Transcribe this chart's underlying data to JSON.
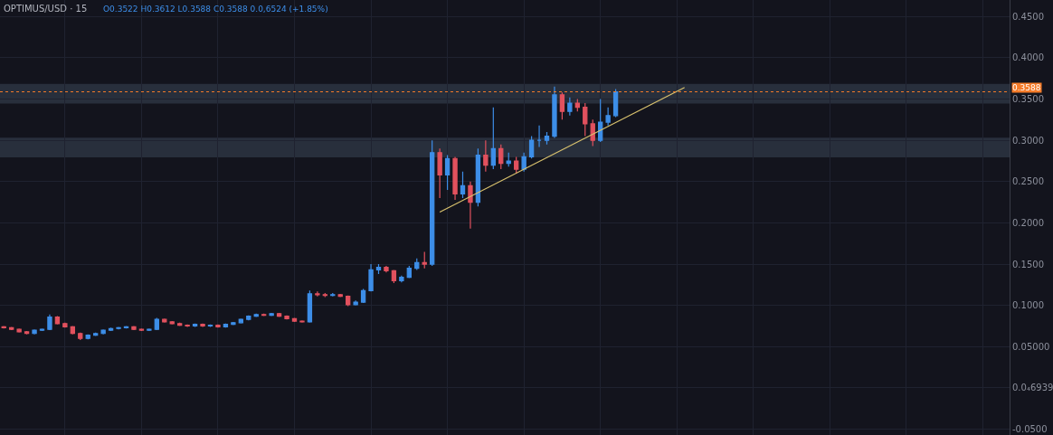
{
  "chart_data": {
    "type": "candlestick",
    "title": "OPTIMUS/USD · 15",
    "annotations": [
      "O0.3522 H0.3612 L0.3588 C0.3588 0.0,6524 (+1.85%)"
    ],
    "categories": [
      null,
      null,
      null,
      null,
      null,
      null,
      null,
      null,
      null,
      null,
      null,
      null,
      null,
      null,
      null,
      null,
      null,
      null,
      null,
      null,
      null,
      null,
      null,
      null,
      null,
      null,
      null,
      null,
      null,
      null,
      null,
      null,
      null,
      null,
      null,
      null,
      null,
      null,
      null,
      null,
      null,
      null,
      null,
      null,
      null,
      null,
      null,
      null,
      null,
      null,
      null,
      null,
      null,
      null,
      null,
      null,
      null,
      null,
      null,
      null,
      null,
      null,
      null,
      null,
      null,
      null,
      null,
      null,
      null,
      null,
      null,
      null,
      null,
      null,
      null,
      null,
      null,
      null,
      null,
      null,
      null,
      null,
      null,
      null,
      null,
      null,
      null,
      null,
      null,
      null,
      null,
      null,
      null,
      null,
      null,
      null,
      null,
      null,
      null,
      null,
      null,
      null,
      null,
      null,
      null,
      null,
      null,
      null,
      null,
      null,
      null,
      null,
      null,
      null,
      null,
      null,
      null,
      null,
      null,
      null,
      null,
      null,
      null,
      null,
      null,
      null,
      null,
      null,
      null,
      null,
      null,
      null
    ],
    "ohlc": [
      [
        0.074,
        0.075,
        0.072,
        0.073
      ],
      [
        0.073,
        0.074,
        0.07,
        0.071
      ],
      [
        0.071,
        0.072,
        0.067,
        0.068
      ],
      [
        0.068,
        0.069,
        0.065,
        0.066
      ],
      [
        0.066,
        0.071,
        0.065,
        0.07
      ],
      [
        0.07,
        0.072,
        0.069,
        0.071
      ],
      [
        0.071,
        0.089,
        0.07,
        0.086
      ],
      [
        0.086,
        0.087,
        0.077,
        0.078
      ],
      [
        0.078,
        0.079,
        0.073,
        0.074
      ],
      [
        0.074,
        0.075,
        0.065,
        0.066
      ],
      [
        0.066,
        0.067,
        0.058,
        0.06
      ],
      [
        0.06,
        0.065,
        0.059,
        0.064
      ],
      [
        0.064,
        0.067,
        0.063,
        0.066
      ],
      [
        0.066,
        0.071,
        0.065,
        0.07
      ],
      [
        0.07,
        0.073,
        0.069,
        0.072
      ],
      [
        0.072,
        0.074,
        0.071,
        0.073
      ],
      [
        0.073,
        0.075,
        0.072,
        0.074
      ],
      [
        0.074,
        0.075,
        0.07,
        0.071
      ],
      [
        0.071,
        0.072,
        0.069,
        0.07
      ],
      [
        0.07,
        0.072,
        0.069,
        0.071
      ],
      [
        0.071,
        0.085,
        0.07,
        0.083
      ],
      [
        0.083,
        0.084,
        0.079,
        0.08
      ],
      [
        0.08,
        0.081,
        0.077,
        0.078
      ],
      [
        0.078,
        0.079,
        0.075,
        0.076
      ],
      [
        0.076,
        0.077,
        0.074,
        0.075
      ],
      [
        0.075,
        0.078,
        0.074,
        0.077
      ],
      [
        0.077,
        0.078,
        0.074,
        0.075
      ],
      [
        0.075,
        0.077,
        0.074,
        0.076
      ],
      [
        0.076,
        0.077,
        0.073,
        0.074
      ],
      [
        0.074,
        0.078,
        0.073,
        0.077
      ],
      [
        0.077,
        0.08,
        0.076,
        0.079
      ],
      [
        0.079,
        0.084,
        0.078,
        0.083
      ],
      [
        0.083,
        0.088,
        0.082,
        0.087
      ],
      [
        0.087,
        0.09,
        0.086,
        0.089
      ],
      [
        0.089,
        0.09,
        0.087,
        0.088
      ],
      [
        0.088,
        0.091,
        0.087,
        0.09
      ],
      [
        0.09,
        0.091,
        0.086,
        0.087
      ],
      [
        0.087,
        0.088,
        0.083,
        0.084
      ],
      [
        0.084,
        0.085,
        0.08,
        0.081
      ],
      [
        0.081,
        0.082,
        0.079,
        0.08
      ],
      [
        0.08,
        0.118,
        0.079,
        0.114
      ],
      [
        0.114,
        0.117,
        0.111,
        0.113
      ],
      [
        0.113,
        0.115,
        0.11,
        0.112
      ],
      [
        0.112,
        0.115,
        0.111,
        0.113
      ],
      [
        0.113,
        0.114,
        0.11,
        0.111
      ],
      [
        0.111,
        0.112,
        0.099,
        0.101
      ],
      [
        0.101,
        0.106,
        0.1,
        0.104
      ],
      [
        0.104,
        0.12,
        0.103,
        0.118
      ],
      [
        0.118,
        0.15,
        0.117,
        0.143
      ],
      [
        0.143,
        0.15,
        0.138,
        0.146
      ],
      [
        0.146,
        0.148,
        0.14,
        0.142
      ],
      [
        0.142,
        0.143,
        0.127,
        0.13
      ],
      [
        0.13,
        0.136,
        0.128,
        0.134
      ],
      [
        0.134,
        0.148,
        0.133,
        0.145
      ],
      [
        0.145,
        0.157,
        0.143,
        0.152
      ],
      [
        0.152,
        0.165,
        0.145,
        0.15
      ],
      [
        0.15,
        0.3,
        0.148,
        0.285
      ],
      [
        0.285,
        0.29,
        0.23,
        0.258
      ],
      [
        0.258,
        0.282,
        0.24,
        0.278
      ],
      [
        0.278,
        0.28,
        0.228,
        0.235
      ],
      [
        0.235,
        0.262,
        0.23,
        0.245
      ],
      [
        0.245,
        0.25,
        0.193,
        0.225
      ],
      [
        0.225,
        0.29,
        0.22,
        0.282
      ],
      [
        0.282,
        0.3,
        0.262,
        0.27
      ],
      [
        0.27,
        0.34,
        0.265,
        0.29
      ],
      [
        0.29,
        0.295,
        0.265,
        0.272
      ],
      [
        0.272,
        0.285,
        0.268,
        0.275
      ],
      [
        0.275,
        0.28,
        0.26,
        0.265
      ],
      [
        0.265,
        0.285,
        0.262,
        0.28
      ],
      [
        0.28,
        0.305,
        0.278,
        0.3
      ],
      [
        0.3,
        0.318,
        0.292,
        0.3
      ],
      [
        0.3,
        0.31,
        0.295,
        0.305
      ],
      [
        0.305,
        0.365,
        0.303,
        0.355
      ],
      [
        0.355,
        0.358,
        0.325,
        0.335
      ],
      [
        0.335,
        0.352,
        0.33,
        0.345
      ],
      [
        0.345,
        0.35,
        0.335,
        0.34
      ],
      [
        0.34,
        0.345,
        0.305,
        0.32
      ],
      [
        0.32,
        0.325,
        0.293,
        0.3
      ],
      [
        0.3,
        0.35,
        0.298,
        0.322
      ],
      [
        0.322,
        0.34,
        0.318,
        0.33
      ],
      [
        0.33,
        0.362,
        0.328,
        0.3588
      ],
      null,
      null,
      null,
      null,
      null,
      null,
      null,
      null,
      null,
      null,
      null,
      null,
      null,
      null,
      null,
      null,
      null,
      null,
      null,
      null,
      null,
      null,
      null,
      null,
      null,
      null,
      null,
      null,
      null,
      null,
      null,
      null,
      null,
      null,
      null,
      null,
      null,
      null,
      null,
      null,
      null,
      null,
      null,
      null,
      null,
      null,
      null,
      null,
      null,
      null,
      null
    ],
    "colors": [
      "#e2515e",
      "#e2515e",
      "#e2515e",
      "#e2515e",
      "#3d8ee8",
      "#3d8ee8",
      "#3d8ee8",
      "#e2515e",
      "#e2515e",
      "#e2515e",
      "#e2515e",
      "#3d8ee8",
      "#3d8ee8",
      "#3d8ee8",
      "#3d8ee8",
      "#3d8ee8",
      "#3d8ee8",
      "#e2515e",
      "#e2515e",
      "#3d8ee8",
      "#3d8ee8",
      "#e2515e",
      "#e2515e",
      "#e2515e",
      "#e2515e",
      "#3d8ee8",
      "#e2515e",
      "#3d8ee8",
      "#e2515e",
      "#3d8ee8",
      "#3d8ee8",
      "#3d8ee8",
      "#3d8ee8",
      "#3d8ee8",
      "#e2515e",
      "#3d8ee8",
      "#e2515e",
      "#e2515e",
      "#e2515e",
      "#e2515e",
      "#3d8ee8",
      "#e2515e",
      "#e2515e",
      "#3d8ee8",
      "#e2515e",
      "#e2515e",
      "#3d8ee8",
      "#3d8ee8",
      "#3d8ee8",
      "#3d8ee8",
      "#e2515e",
      "#e2515e",
      "#3d8ee8",
      "#3d8ee8",
      "#3d8ee8",
      "#e2515e",
      "#3d8ee8",
      "#e2515e",
      "#3d8ee8",
      "#e2515e",
      "#3d8ee8",
      "#e2515e",
      "#3d8ee8",
      "#e2515e",
      "#3d8ee8",
      "#e2515e",
      "#3d8ee8",
      "#e2515e",
      "#3d8ee8",
      "#3d8ee8",
      "#3d8ee8",
      "#3d8ee8",
      "#3d8ee8",
      "#e2515e",
      "#3d8ee8",
      "#e2515e",
      "#e2515e",
      "#e2515e",
      "#3d8ee8",
      "#3d8ee8",
      "#3d8ee8",
      null,
      null,
      null,
      null,
      null,
      null,
      null,
      null,
      null,
      null,
      null,
      null,
      null,
      null,
      null,
      null,
      null,
      null,
      null,
      null,
      null,
      null,
      null,
      null,
      null,
      null,
      null,
      null,
      null,
      null,
      null,
      null,
      null,
      null,
      null,
      null,
      null,
      null,
      null,
      null,
      null,
      null,
      null,
      null,
      null,
      null,
      null,
      null,
      null,
      null,
      null
    ],
    "series": [
      {
        "type": "line",
        "color": "#d9c26e",
        "values": [
          null,
          null,
          null,
          null,
          null,
          null,
          null,
          null,
          null,
          null,
          null,
          null,
          null,
          null,
          null,
          null,
          null,
          null,
          null,
          null,
          null,
          null,
          null,
          null,
          null,
          null,
          null,
          null,
          null,
          null,
          null,
          null,
          null,
          null,
          null,
          null,
          null,
          null,
          null,
          null,
          null,
          null,
          null,
          null,
          null,
          null,
          null,
          null,
          null,
          null,
          null,
          null,
          null,
          null,
          null,
          null,
          null,
          0.213,
          null,
          null,
          null,
          null,
          null,
          null,
          null,
          null,
          null,
          null,
          null,
          null,
          null,
          null,
          null,
          null,
          null,
          null,
          null,
          null,
          null,
          null,
          null,
          null,
          null,
          null,
          null,
          null,
          null,
          null,
          null,
          0.364,
          null,
          null,
          null,
          null,
          null,
          null,
          null,
          null,
          null,
          null,
          null,
          null,
          null,
          null,
          null,
          null,
          null,
          null,
          null,
          null,
          null,
          null,
          null,
          null,
          null,
          null,
          null,
          null,
          null,
          null,
          null,
          null,
          null,
          null,
          null,
          null,
          null,
          null,
          null,
          null,
          null,
          null
        ]
      }
    ],
    "ref_lines": [
      {
        "axis": "y",
        "value": 0.3588,
        "label": "0.3588",
        "color": "#f57c2a",
        "line_style": "dotted"
      }
    ],
    "bands": [
      {
        "axis": "y",
        "from": 0.3446,
        "to": 0.3685,
        "color": "#2b3240"
      },
      {
        "axis": "y",
        "from": 0.2793,
        "to": 0.3033,
        "color": "#2b3240"
      }
    ],
    "ylim": [
      -0.057,
      0.47
    ],
    "yticks": [
      {
        "value": -0.05,
        "label": "-0.0500"
      },
      {
        "value": 6.939e-05,
        "label": "0.0₄6939"
      },
      {
        "value": 0.05,
        "label": "0.05000"
      },
      {
        "value": 0.1,
        "label": "0.1000"
      },
      {
        "value": 0.15,
        "label": "0.1500"
      },
      {
        "value": 0.2,
        "label": "0.2000"
      },
      {
        "value": 0.25,
        "label": "0.2500"
      },
      {
        "value": 0.3,
        "label": "0.3000"
      },
      {
        "value": 0.35,
        "label": "0.3500"
      },
      {
        "value": 0.4,
        "label": "0.4000"
      },
      {
        "value": 0.45,
        "label": "0.4500"
      }
    ],
    "tick_labels": "y",
    "grid": true
  }
}
